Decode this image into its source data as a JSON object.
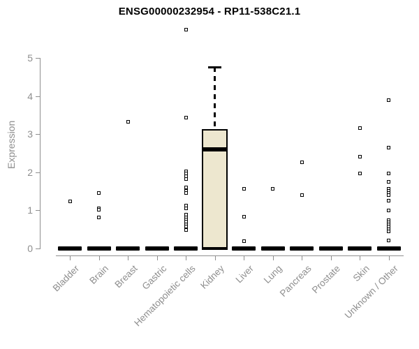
{
  "chart_data": {
    "type": "boxplot",
    "title": "ENSG00000232954 - RP11-538C21.1",
    "ylabel": "Expression",
    "xlabel": "",
    "ylim": [
      0,
      5
    ],
    "yticks": [
      "0",
      "1",
      "2",
      "3",
      "4",
      "5"
    ],
    "grid": false,
    "legend": false,
    "categories": [
      "Bladder",
      "Brain",
      "Breast",
      "Gastric",
      "Hematopoietic cells",
      "Kidney",
      "Liver",
      "Lung",
      "Pancreas",
      "Prostate",
      "Skin",
      "Unknown / Other"
    ],
    "boxes": [
      {
        "category": "Bladder",
        "min": 0,
        "q1": 0,
        "median": 0,
        "q3": 0,
        "max": 0,
        "outliers": [
          1.23
        ]
      },
      {
        "category": "Brain",
        "min": 0,
        "q1": 0,
        "median": 0,
        "q3": 0,
        "max": 0,
        "outliers": [
          1.45,
          1.06,
          1.01,
          0.82
        ]
      },
      {
        "category": "Breast",
        "min": 0,
        "q1": 0,
        "median": 0,
        "q3": 0,
        "max": 0,
        "outliers": [
          3.32
        ]
      },
      {
        "category": "Gastric",
        "min": 0,
        "q1": 0,
        "median": 0,
        "q3": 0,
        "max": 0,
        "outliers": []
      },
      {
        "category": "Hematopoietic cells",
        "min": 0,
        "q1": 0,
        "median": 0,
        "q3": 0,
        "max": 0,
        "outliers": [
          5.74,
          3.44,
          2.03,
          1.96,
          1.9,
          1.83,
          1.61,
          1.51,
          1.45,
          1.12,
          1.06,
          0.88,
          0.82,
          0.76,
          0.7,
          0.63,
          0.57,
          0.48
        ]
      },
      {
        "category": "Kidney",
        "min": 0,
        "q1": 0,
        "median": 2.6,
        "q3": 3.14,
        "max": 4.76,
        "outliers": []
      },
      {
        "category": "Liver",
        "min": 0,
        "q1": 0,
        "median": 0,
        "q3": 0,
        "max": 0,
        "outliers": [
          1.56,
          0.84,
          0.19
        ]
      },
      {
        "category": "Lung",
        "min": 0,
        "q1": 0,
        "median": 0,
        "q3": 0,
        "max": 0,
        "outliers": [
          1.56
        ]
      },
      {
        "category": "Pancreas",
        "min": 0,
        "q1": 0,
        "median": 0,
        "q3": 0,
        "max": 0,
        "outliers": [
          2.27,
          1.4
        ]
      },
      {
        "category": "Prostate",
        "min": 0,
        "q1": 0,
        "median": 0,
        "q3": 0,
        "max": 0,
        "outliers": []
      },
      {
        "category": "Skin",
        "min": 0,
        "q1": 0,
        "median": 0,
        "q3": 0,
        "max": 0,
        "outliers": [
          3.16,
          2.41,
          1.97
        ]
      },
      {
        "category": "Unknown / Other",
        "min": 0,
        "q1": 0,
        "median": 0,
        "q3": 0,
        "max": 0,
        "outliers": [
          3.89,
          2.64,
          1.97,
          1.74,
          1.56,
          1.51,
          1.46,
          1.41,
          1.26,
          0.99,
          0.75,
          0.69,
          0.63,
          0.57,
          0.51,
          0.45,
          0.21
        ]
      }
    ],
    "colors": {
      "box_fill": "#ede7cf",
      "box_border": "#000000",
      "median": "#000000",
      "zero_bar": "#000000",
      "axis": "#8e8e8e",
      "tick_label": "#8e8e8e",
      "title": "#000000",
      "background": "#ffffff"
    }
  }
}
